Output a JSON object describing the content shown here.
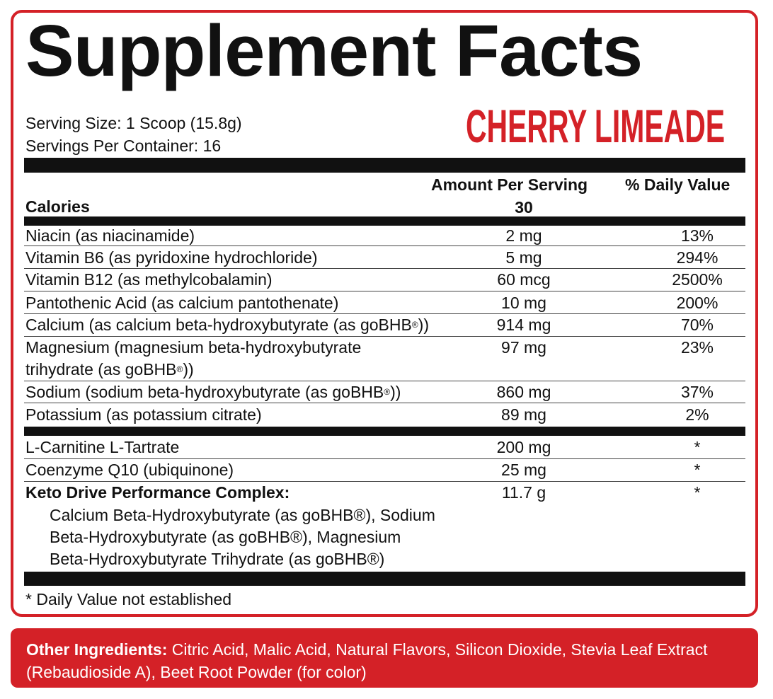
{
  "title": "Supplement Facts",
  "flavor": "CHERRY LIMEADE",
  "serving_size": "Serving Size: 1 Scoop (15.8g)",
  "servings_per_container": "Servings Per Container: 16",
  "header": {
    "amount_per_serving": "Amount Per Serving",
    "daily_value": "% Daily Value",
    "calories_label": "Calories",
    "calories_value": "30"
  },
  "vitamins": [
    {
      "name": "Niacin (as niacinamide)",
      "amount": "2 mg",
      "dv": "13%"
    },
    {
      "name": "Vitamin B6 (as pyridoxine hydrochloride)",
      "amount": "5 mg",
      "dv": "294%"
    },
    {
      "name": "Vitamin B12 (as methylcobalamin)",
      "amount": "60 mcg",
      "dv": "2500%"
    },
    {
      "name": "Pantothenic Acid (as calcium pantothenate)",
      "amount": "10 mg",
      "dv": "200%"
    },
    {
      "name_before": "Calcium (as calcium beta-hydroxybutyrate (as goBHB",
      "reg": "®",
      "name_after": "))",
      "amount": "914 mg",
      "dv": "70%"
    },
    {
      "name_line1": "Magnesium (magnesium beta-hydroxybutyrate",
      "name_before": "trihydrate (as goBHB",
      "reg": "®",
      "name_after": "))",
      "amount": "97 mg",
      "dv": "23%"
    },
    {
      "name_before": "Sodium (sodium beta-hydroxybutyrate (as goBHB",
      "reg": "®",
      "name_after": "))",
      "amount": "860 mg",
      "dv": "37%"
    },
    {
      "name": "Potassium (as potassium citrate)",
      "amount": "89 mg",
      "dv": "2%"
    }
  ],
  "others": [
    {
      "name": "L-Carnitine L-Tartrate",
      "amount": "200 mg",
      "dv": "*"
    },
    {
      "name": "Coenzyme Q10 (ubiquinone)",
      "amount": "25 mg",
      "dv": "*"
    },
    {
      "name": "Keto Drive Performance Complex:",
      "amount": "11.7 g",
      "dv": "*"
    }
  ],
  "complex_lines": [
    "Calcium Beta-Hydroxybutyrate (as goBHB®), Sodium",
    "Beta-Hydroxybutyrate (as goBHB®), Magnesium",
    "Beta-Hydroxybutyrate Trihydrate (as goBHB®)"
  ],
  "footnote": "* Daily Value not established",
  "other_ingredients": {
    "label": "Other Ingredients:",
    "text": " Citric Acid, Malic Acid, Natural Flavors, Silicon Dioxide, Stevia Leaf Extract (Rebaudioside A), Beet Root Powder (for color)"
  },
  "colors": {
    "accent": "#d42127",
    "bar": "#111111"
  }
}
